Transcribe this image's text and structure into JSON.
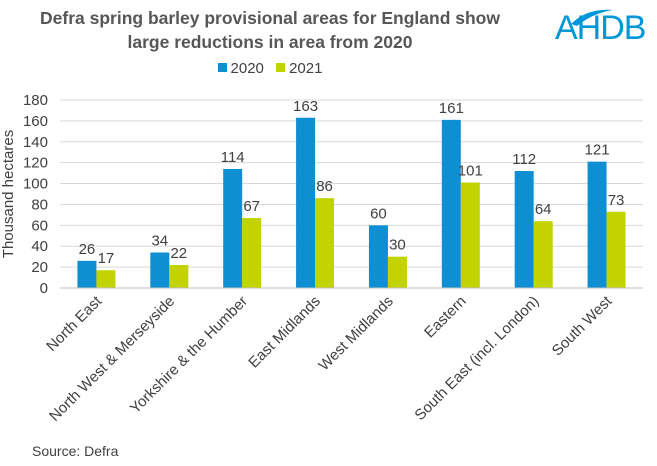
{
  "title_line1": "Defra spring barley provisional areas for England show",
  "title_line2": "large reductions in area from 2020",
  "logo_text": "AHDB",
  "source": "Source: Defra",
  "colors": {
    "s2020": "#0f8fd3",
    "s2021": "#c2d300",
    "text": "#404040",
    "grid": "#d9d9d9",
    "logo": "#0097d8"
  },
  "chart_data": {
    "type": "bar",
    "title": "Defra spring barley provisional areas for England show large reductions in area from 2020",
    "xlabel": "",
    "ylabel": "Thousand hectares",
    "ylim": [
      0,
      180
    ],
    "yticks": [
      0,
      20,
      40,
      60,
      80,
      100,
      120,
      140,
      160,
      180
    ],
    "grid": true,
    "legend": "top-center",
    "categories": [
      "North East",
      "North West & Merseyside",
      "Yorkshire & the Humber",
      "East Midlands",
      "West Midlands",
      "Eastern",
      "South East (incl. London)",
      "South West"
    ],
    "series": [
      {
        "name": "2020",
        "values": [
          26,
          34,
          114,
          163,
          60,
          161,
          112,
          121
        ]
      },
      {
        "name": "2021",
        "values": [
          17,
          22,
          67,
          86,
          30,
          101,
          64,
          73
        ]
      }
    ]
  }
}
